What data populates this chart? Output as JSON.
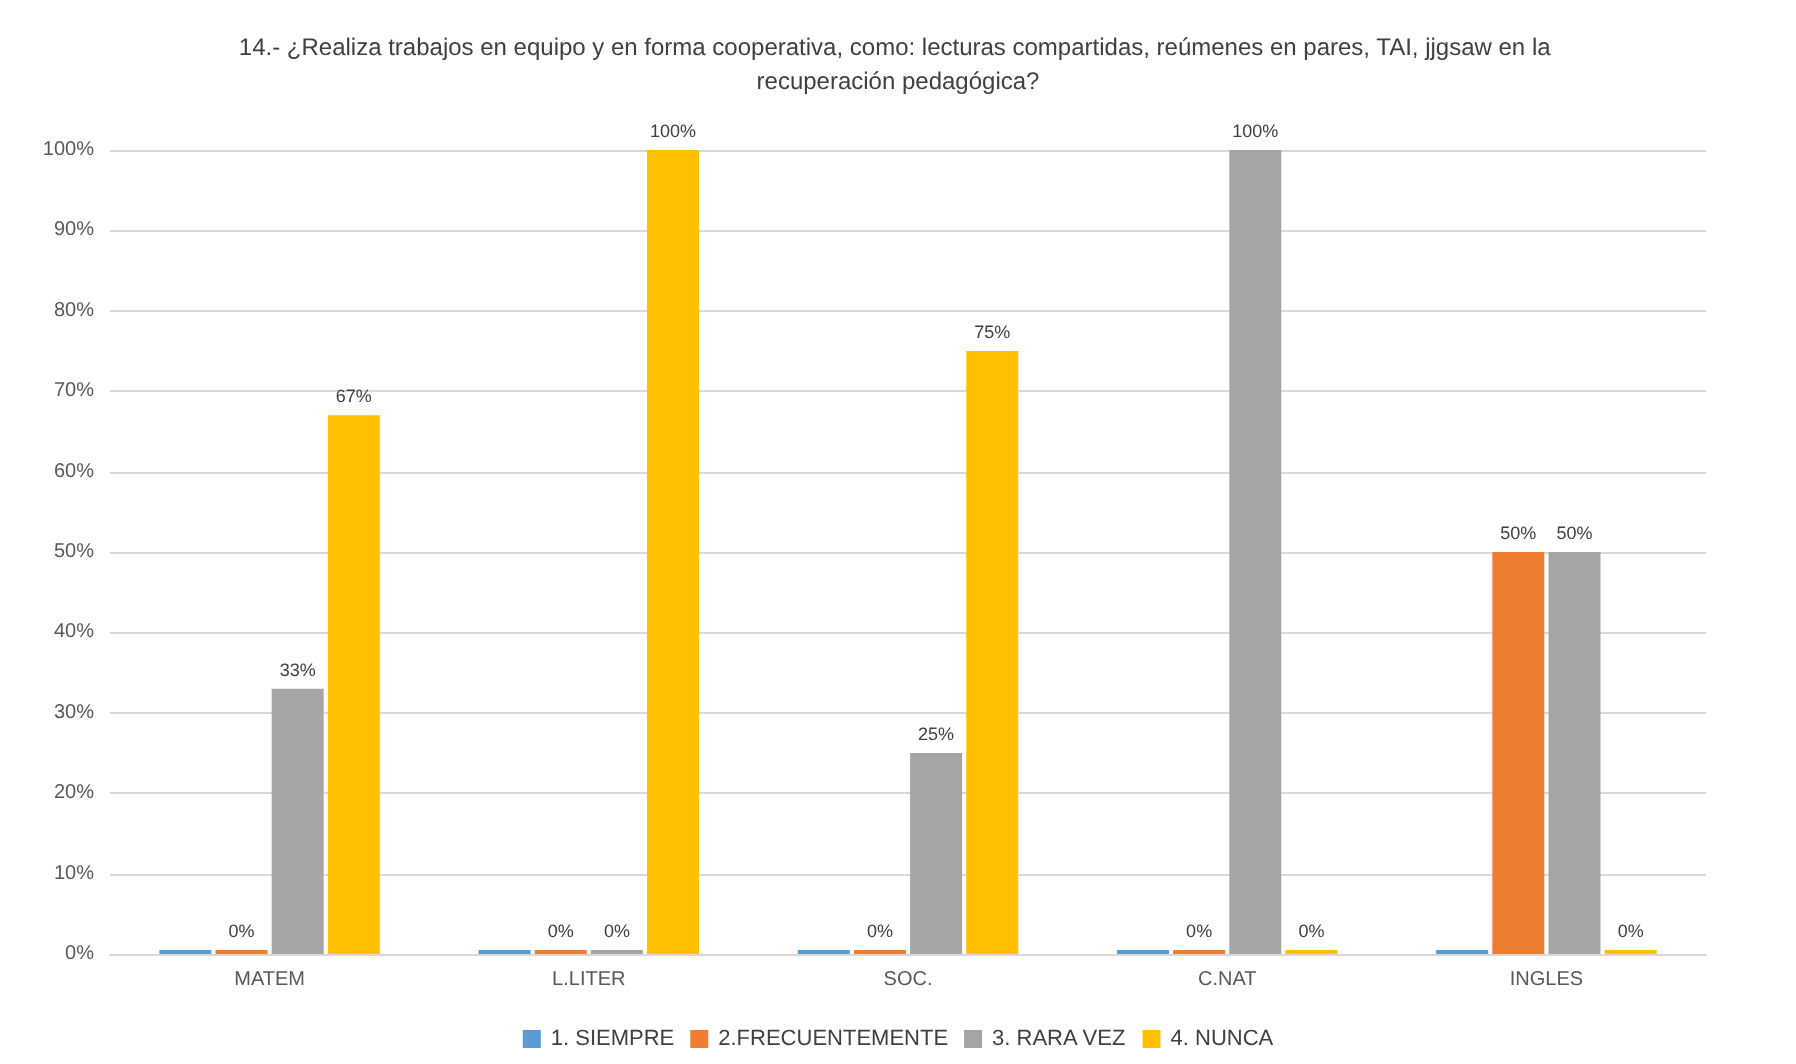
{
  "chart_data": {
    "type": "bar",
    "title": "14.- ¿Realiza trabajos en equipo y en forma cooperativa, como: lecturas compartidas, reúmenes en pares, TAI, jjgsaw en la recuperación pedagógica?",
    "categories": [
      "MATEM",
      "L.LITER",
      "SOC.",
      "C.NAT",
      "INGLES"
    ],
    "series": [
      {
        "name": "1. SIEMPRE",
        "color": "#5b9bd5",
        "values": [
          0,
          0,
          0,
          0,
          0
        ],
        "value_labels": [
          null,
          null,
          null,
          null,
          null
        ]
      },
      {
        "name": "2.FRECUENTEMENTE",
        "color": "#ed7d31",
        "values": [
          0,
          0,
          0,
          0,
          50
        ],
        "value_labels": [
          "0%",
          "0%",
          "0%",
          "0%",
          "50%"
        ]
      },
      {
        "name": "3. RARA VEZ",
        "color": "#a5a5a5",
        "values": [
          33,
          0,
          25,
          100,
          50
        ],
        "value_labels": [
          "33%",
          "0%",
          "25%",
          "100%",
          "50%"
        ]
      },
      {
        "name": "4. NUNCA",
        "color": "#ffc000",
        "values": [
          67,
          100,
          75,
          0,
          0
        ],
        "value_labels": [
          "67%",
          "100%",
          "75%",
          "0%",
          "0%"
        ]
      }
    ],
    "ylim": [
      0,
      100
    ],
    "yticks": [
      {
        "value": 0,
        "label": "0%"
      },
      {
        "value": 10,
        "label": "10%"
      },
      {
        "value": 20,
        "label": "20%"
      },
      {
        "value": 30,
        "label": "30%"
      },
      {
        "value": 40,
        "label": "40%"
      },
      {
        "value": 50,
        "label": "50%"
      },
      {
        "value": 60,
        "label": "60%"
      },
      {
        "value": 70,
        "label": "70%"
      },
      {
        "value": 80,
        "label": "80%"
      },
      {
        "value": 90,
        "label": "90%"
      },
      {
        "value": 100,
        "label": "100%"
      }
    ],
    "grid": "y",
    "legend": "bottom"
  }
}
